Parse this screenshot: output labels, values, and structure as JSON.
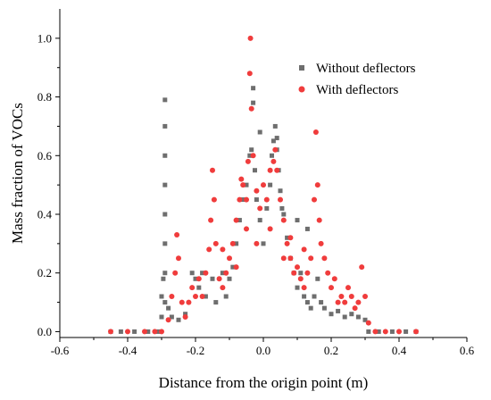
{
  "chart_data": {
    "type": "scatter",
    "xlabel": "Distance from the origin point (m)",
    "ylabel": "Mass fraction of VOCs",
    "xlim": [
      -0.6,
      0.6
    ],
    "ylim": [
      -0.02,
      1.1
    ],
    "x_ticks": [
      -0.6,
      -0.4,
      -0.2,
      0.0,
      0.2,
      0.4,
      0.6
    ],
    "y_ticks": [
      0.0,
      0.2,
      0.4,
      0.6,
      0.8,
      1.0
    ],
    "x_tick_labels": [
      "-0.6",
      "-0.4",
      "-0.2",
      "0.0",
      "0.2",
      "0.4",
      "0.6"
    ],
    "y_tick_labels": [
      "0.0",
      "0.2",
      "0.4",
      "0.6",
      "0.8",
      "1.0"
    ],
    "legend_position": "top-right",
    "series": [
      {
        "name": "Without deflectors",
        "marker": "square",
        "color": "#6e6e6e",
        "points": [
          [
            -0.45,
            0.0
          ],
          [
            -0.42,
            0.0
          ],
          [
            -0.38,
            0.0
          ],
          [
            -0.34,
            0.0
          ],
          [
            -0.31,
            0.0
          ],
          [
            -0.29,
            0.79
          ],
          [
            -0.29,
            0.7
          ],
          [
            -0.29,
            0.6
          ],
          [
            -0.29,
            0.5
          ],
          [
            -0.29,
            0.4
          ],
          [
            -0.29,
            0.3
          ],
          [
            -0.29,
            0.2
          ],
          [
            -0.29,
            0.1
          ],
          [
            -0.295,
            0.18
          ],
          [
            -0.3,
            0.12
          ],
          [
            -0.3,
            0.05
          ],
          [
            -0.28,
            0.08
          ],
          [
            -0.27,
            0.05
          ],
          [
            -0.25,
            0.04
          ],
          [
            -0.23,
            0.06
          ],
          [
            -0.21,
            0.2
          ],
          [
            -0.2,
            0.18
          ],
          [
            -0.19,
            0.15
          ],
          [
            -0.18,
            0.2
          ],
          [
            -0.17,
            0.12
          ],
          [
            -0.15,
            0.18
          ],
          [
            -0.14,
            0.1
          ],
          [
            -0.12,
            0.2
          ],
          [
            -0.11,
            0.12
          ],
          [
            -0.1,
            0.18
          ],
          [
            -0.09,
            0.22
          ],
          [
            -0.08,
            0.3
          ],
          [
            -0.07,
            0.38
          ],
          [
            -0.06,
            0.45
          ],
          [
            -0.05,
            0.5
          ],
          [
            -0.04,
            0.6
          ],
          [
            -0.035,
            0.62
          ],
          [
            -0.03,
            0.83
          ],
          [
            -0.025,
            0.55
          ],
          [
            -0.02,
            0.45
          ],
          [
            -0.01,
            0.38
          ],
          [
            0.0,
            0.3
          ],
          [
            0.01,
            0.42
          ],
          [
            0.02,
            0.5
          ],
          [
            0.025,
            0.6
          ],
          [
            0.03,
            0.65
          ],
          [
            0.035,
            0.7
          ],
          [
            0.04,
            0.62
          ],
          [
            0.045,
            0.55
          ],
          [
            0.05,
            0.48
          ],
          [
            0.06,
            0.4
          ],
          [
            0.07,
            0.32
          ],
          [
            0.08,
            0.25
          ],
          [
            0.09,
            0.2
          ],
          [
            0.1,
            0.15
          ],
          [
            0.11,
            0.2
          ],
          [
            0.12,
            0.12
          ],
          [
            0.13,
            0.1
          ],
          [
            0.14,
            0.08
          ],
          [
            0.15,
            0.12
          ],
          [
            0.16,
            0.18
          ],
          [
            0.17,
            0.1
          ],
          [
            0.18,
            0.08
          ],
          [
            0.2,
            0.06
          ],
          [
            0.22,
            0.07
          ],
          [
            0.24,
            0.05
          ],
          [
            0.26,
            0.06
          ],
          [
            0.28,
            0.05
          ],
          [
            0.3,
            0.04
          ],
          [
            0.31,
            0.0
          ],
          [
            0.34,
            0.0
          ],
          [
            0.38,
            0.0
          ],
          [
            0.42,
            0.0
          ],
          [
            0.45,
            0.0
          ],
          [
            -0.03,
            0.78
          ],
          [
            -0.01,
            0.68
          ],
          [
            0.04,
            0.66
          ],
          [
            0.1,
            0.38
          ],
          [
            0.13,
            0.35
          ],
          [
            0.055,
            0.42
          ]
        ]
      },
      {
        "name": "With deflectors",
        "marker": "circle",
        "color": "#f03c3c",
        "points": [
          [
            -0.45,
            0.0
          ],
          [
            -0.4,
            0.0
          ],
          [
            -0.35,
            0.0
          ],
          [
            -0.32,
            0.0
          ],
          [
            -0.3,
            0.0
          ],
          [
            -0.28,
            0.04
          ],
          [
            -0.27,
            0.12
          ],
          [
            -0.26,
            0.2
          ],
          [
            -0.255,
            0.33
          ],
          [
            -0.25,
            0.25
          ],
          [
            -0.24,
            0.1
          ],
          [
            -0.23,
            0.05
          ],
          [
            -0.22,
            0.1
          ],
          [
            -0.21,
            0.15
          ],
          [
            -0.2,
            0.12
          ],
          [
            -0.19,
            0.18
          ],
          [
            -0.18,
            0.12
          ],
          [
            -0.17,
            0.2
          ],
          [
            -0.16,
            0.28
          ],
          [
            -0.155,
            0.38
          ],
          [
            -0.15,
            0.55
          ],
          [
            -0.145,
            0.45
          ],
          [
            -0.14,
            0.3
          ],
          [
            -0.13,
            0.18
          ],
          [
            -0.12,
            0.15
          ],
          [
            -0.11,
            0.2
          ],
          [
            -0.1,
            0.25
          ],
          [
            -0.09,
            0.3
          ],
          [
            -0.08,
            0.38
          ],
          [
            -0.07,
            0.45
          ],
          [
            -0.065,
            0.52
          ],
          [
            -0.06,
            0.5
          ],
          [
            -0.05,
            0.45
          ],
          [
            -0.045,
            0.58
          ],
          [
            -0.04,
            0.88
          ],
          [
            -0.038,
            1.0
          ],
          [
            -0.035,
            0.76
          ],
          [
            -0.03,
            0.6
          ],
          [
            -0.02,
            0.48
          ],
          [
            -0.01,
            0.42
          ],
          [
            0.0,
            0.5
          ],
          [
            0.01,
            0.45
          ],
          [
            0.02,
            0.55
          ],
          [
            0.03,
            0.58
          ],
          [
            0.035,
            0.62
          ],
          [
            0.04,
            0.55
          ],
          [
            0.05,
            0.45
          ],
          [
            0.06,
            0.38
          ],
          [
            0.07,
            0.3
          ],
          [
            0.08,
            0.25
          ],
          [
            0.09,
            0.2
          ],
          [
            0.1,
            0.22
          ],
          [
            0.11,
            0.18
          ],
          [
            0.12,
            0.15
          ],
          [
            0.13,
            0.2
          ],
          [
            0.14,
            0.25
          ],
          [
            0.15,
            0.45
          ],
          [
            0.155,
            0.68
          ],
          [
            0.16,
            0.5
          ],
          [
            0.165,
            0.38
          ],
          [
            0.17,
            0.3
          ],
          [
            0.18,
            0.25
          ],
          [
            0.19,
            0.2
          ],
          [
            0.2,
            0.15
          ],
          [
            0.21,
            0.18
          ],
          [
            0.22,
            0.1
          ],
          [
            0.23,
            0.12
          ],
          [
            0.24,
            0.1
          ],
          [
            0.25,
            0.15
          ],
          [
            0.26,
            0.12
          ],
          [
            0.27,
            0.08
          ],
          [
            0.28,
            0.1
          ],
          [
            0.29,
            0.22
          ],
          [
            0.3,
            0.12
          ],
          [
            0.31,
            0.03
          ],
          [
            0.33,
            0.0
          ],
          [
            0.36,
            0.0
          ],
          [
            0.4,
            0.0
          ],
          [
            0.45,
            0.0
          ],
          [
            -0.05,
            0.35
          ],
          [
            0.08,
            0.32
          ],
          [
            0.12,
            0.28
          ],
          [
            -0.12,
            0.28
          ],
          [
            0.02,
            0.35
          ],
          [
            -0.02,
            0.3
          ],
          [
            0.06,
            0.25
          ],
          [
            -0.08,
            0.22
          ]
        ]
      }
    ]
  }
}
